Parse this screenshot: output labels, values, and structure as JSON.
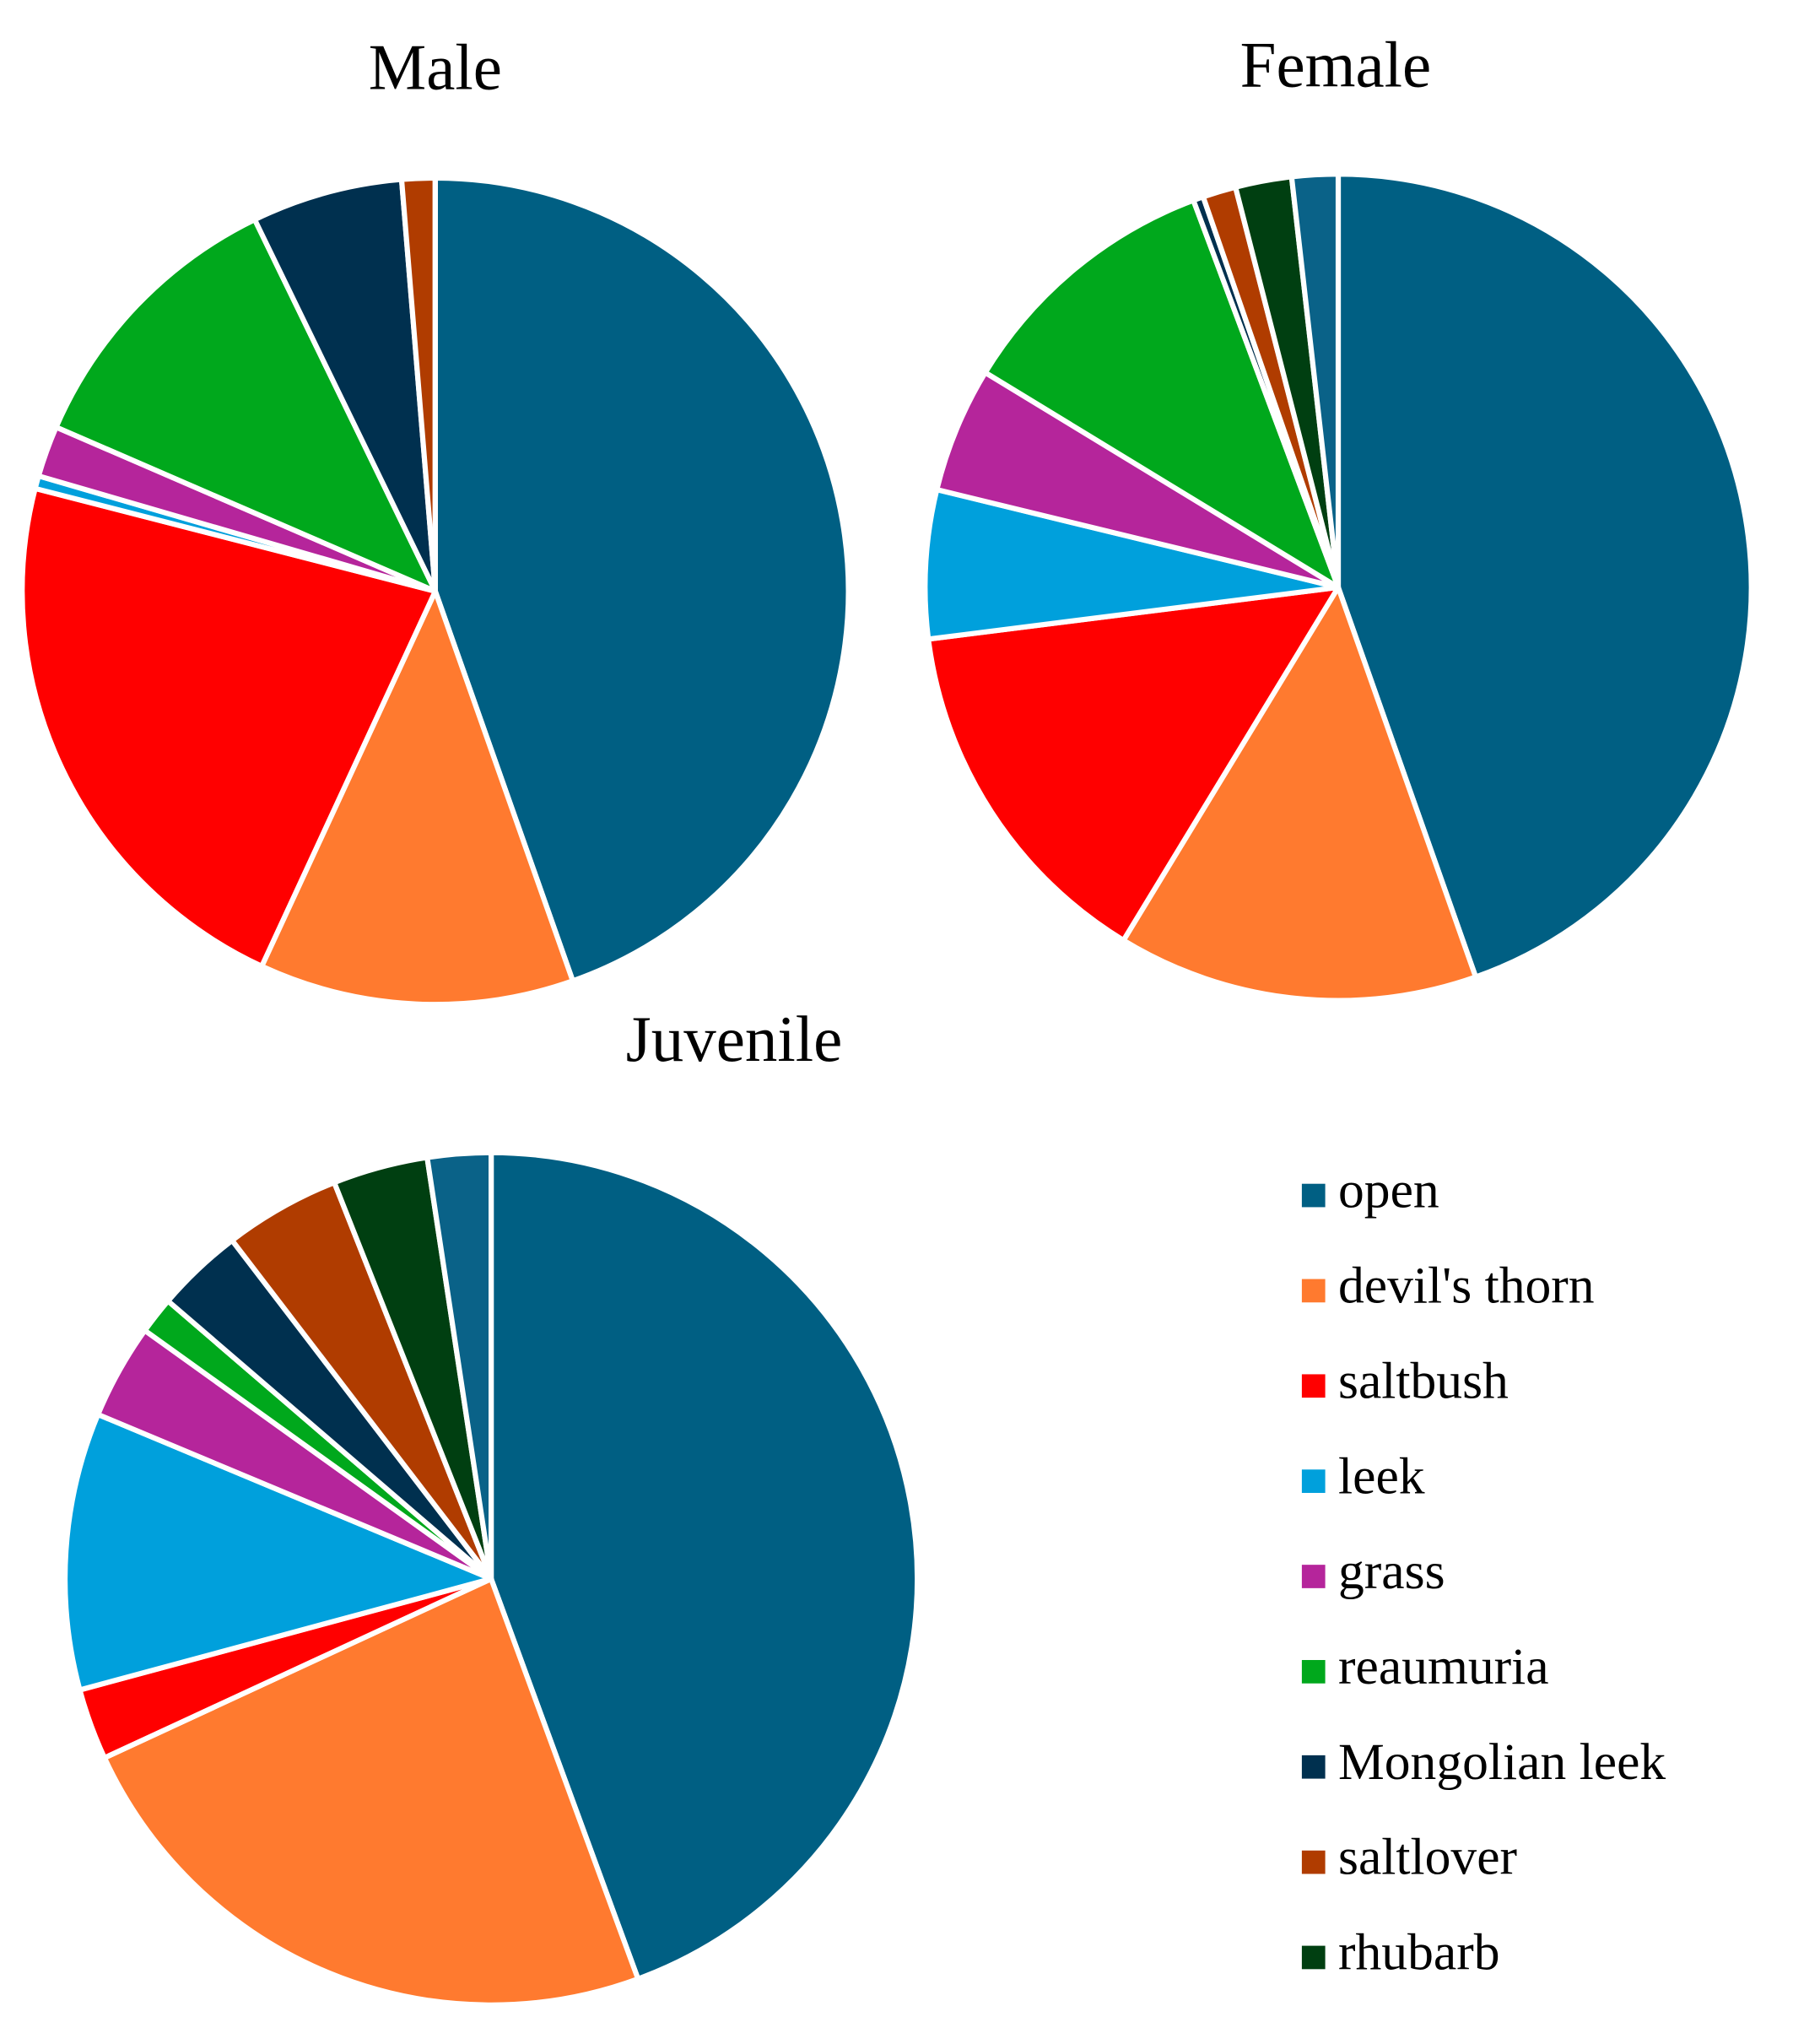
{
  "chart_data": {
    "type": "pie",
    "categories": [
      "open",
      "devil's thorn",
      "saltbush",
      "leek",
      "grass",
      "reaumuria",
      "Mongolian leek",
      "saltlover",
      "rhubarb",
      null
    ],
    "colors": [
      "#005f83",
      "#ff7a2f",
      "#ff0000",
      "#00a0dc",
      "#b5259b",
      "#00a81c",
      "#00304f",
      "#b03c00",
      "#003f11",
      "#0a6288"
    ],
    "series": [
      {
        "name": "Male",
        "values": [
          44.6,
          12.3,
          22.1,
          0.5,
          2.0,
          11.3,
          5.9,
          1.3,
          0,
          0
        ]
      },
      {
        "name": "Female",
        "values": [
          44.6,
          14.1,
          14.3,
          5.8,
          4.9,
          10.6,
          0.4,
          1.3,
          2.2,
          1.8
        ]
      },
      {
        "name": "Juvenile",
        "values": [
          44.4,
          23.7,
          2.7,
          10.5,
          3.6,
          1.4,
          3.3,
          4.4,
          3.6,
          2.4
        ]
      }
    ]
  }
}
